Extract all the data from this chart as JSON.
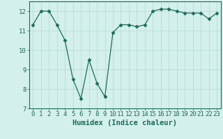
{
  "x": [
    0,
    1,
    2,
    3,
    4,
    5,
    6,
    7,
    8,
    9,
    10,
    11,
    12,
    13,
    14,
    15,
    16,
    17,
    18,
    19,
    20,
    21,
    22,
    23
  ],
  "y": [
    11.3,
    12.0,
    12.0,
    11.3,
    10.5,
    8.5,
    7.5,
    9.5,
    8.3,
    7.6,
    10.9,
    11.3,
    11.3,
    11.2,
    11.3,
    12.0,
    12.1,
    12.1,
    12.0,
    11.9,
    11.9,
    11.9,
    11.6,
    11.9
  ],
  "xlim": [
    -0.5,
    23.5
  ],
  "ylim": [
    7,
    12.5
  ],
  "xlabel": "Humidex (Indice chaleur)",
  "xticks": [
    0,
    1,
    2,
    3,
    4,
    5,
    6,
    7,
    8,
    9,
    10,
    11,
    12,
    13,
    14,
    15,
    16,
    17,
    18,
    19,
    20,
    21,
    22,
    23
  ],
  "yticks": [
    7,
    8,
    9,
    10,
    11,
    12
  ],
  "line_color": "#1a6b5a",
  "marker": "D",
  "marker_size": 2.5,
  "bg_color": "#d4f0ec",
  "grid_color": "#b8dbd6",
  "tick_color": "#1a6b5a",
  "label_color": "#1a6b5a",
  "font_size_xlabel": 7.5,
  "font_size_ticks": 6.5
}
